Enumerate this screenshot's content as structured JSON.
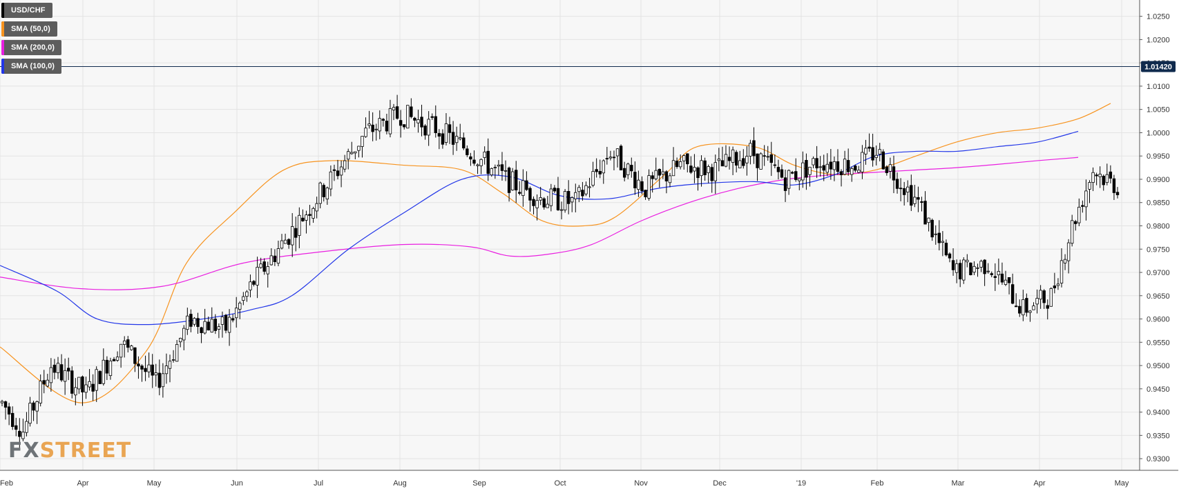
{
  "legend": {
    "items": [
      {
        "label": "USD/CHF",
        "color": "#000000"
      },
      {
        "label": "SMA (50,0)",
        "color": "#f7931e"
      },
      {
        "label": "SMA (200,0)",
        "color": "#e91ee0"
      },
      {
        "label": "SMA (100,0)",
        "color": "#2236e8"
      }
    ]
  },
  "watermark": {
    "part1": "FX",
    "part2": "STREET"
  },
  "price_marker": {
    "value": "1.01420",
    "color": "#0f2a4d"
  },
  "chart_data": {
    "type": "candlestick",
    "title": "",
    "xlabel": "",
    "ylabel": "",
    "ylim": [
      0.9275,
      1.0285
    ],
    "y_ticks": [
      "0.9300",
      "0.9350",
      "0.9400",
      "0.9450",
      "0.9500",
      "0.9550",
      "0.9600",
      "0.9650",
      "0.9700",
      "0.9750",
      "0.9800",
      "0.9850",
      "0.9900",
      "0.9950",
      "1.0000",
      "1.0050",
      "1.0100",
      "1.0150",
      "1.0200",
      "1.0250"
    ],
    "x_ticks": [
      "Feb",
      "Apr",
      "May",
      "Jun",
      "Jul",
      "Aug",
      "Sep",
      "Oct",
      "Nov",
      "Dec",
      "'19",
      "Feb",
      "Mar",
      "Apr",
      "May"
    ],
    "grid": true,
    "horizontal_line": 1.0142,
    "candle_count": 320,
    "price_path": [
      [
        0,
        0.942
      ],
      [
        6,
        0.936
      ],
      [
        14,
        0.95
      ],
      [
        24,
        0.944
      ],
      [
        34,
        0.955
      ],
      [
        44,
        0.946
      ],
      [
        54,
        0.96
      ],
      [
        64,
        0.958
      ],
      [
        72,
        0.968
      ],
      [
        84,
        0.98
      ],
      [
        94,
        0.99
      ],
      [
        104,
        1.0
      ],
      [
        114,
        1.004
      ],
      [
        124,
        1.001
      ],
      [
        134,
        0.996
      ],
      [
        144,
        0.99
      ],
      [
        154,
        0.986
      ],
      [
        164,
        0.985
      ],
      [
        174,
        0.996
      ],
      [
        184,
        0.988
      ],
      [
        194,
        0.993
      ],
      [
        204,
        0.992
      ],
      [
        214,
        0.996
      ],
      [
        224,
        0.99
      ],
      [
        234,
        0.994
      ],
      [
        244,
        0.993
      ],
      [
        250,
        0.996
      ],
      [
        262,
        0.985
      ],
      [
        272,
        0.97
      ],
      [
        282,
        0.972
      ],
      [
        292,
        0.962
      ],
      [
        300,
        0.965
      ],
      [
        306,
        0.98
      ],
      [
        312,
        0.992
      ],
      [
        320,
        0.988
      ]
    ],
    "series": [
      {
        "name": "SMA (50,0)",
        "values": [
          [
            0,
            0.954
          ],
          [
            20,
            0.942
          ],
          [
            36,
            0.953
          ],
          [
            46,
            0.972
          ],
          [
            58,
            0.983
          ],
          [
            70,
            0.992
          ],
          [
            82,
            0.994
          ],
          [
            100,
            0.993
          ],
          [
            114,
            0.992
          ],
          [
            124,
            0.987
          ],
          [
            134,
            0.981
          ],
          [
            144,
            0.98
          ],
          [
            152,
            0.982
          ],
          [
            164,
            0.991
          ],
          [
            172,
            0.997
          ],
          [
            186,
            0.997
          ],
          [
            196,
            0.993
          ],
          [
            206,
            0.991
          ],
          [
            216,
            0.992
          ],
          [
            226,
            0.995
          ],
          [
            236,
            0.998
          ],
          [
            246,
            1.0
          ],
          [
            256,
            1.001
          ],
          [
            266,
            1.003
          ],
          [
            274,
            1.0063
          ]
        ]
      },
      {
        "name": "SMA (200,0)",
        "values": [
          [
            0,
            0.969
          ],
          [
            20,
            0.9665
          ],
          [
            40,
            0.967
          ],
          [
            60,
            0.972
          ],
          [
            80,
            0.9745
          ],
          [
            100,
            0.976
          ],
          [
            116,
            0.9755
          ],
          [
            126,
            0.9735
          ],
          [
            136,
            0.974
          ],
          [
            146,
            0.976
          ],
          [
            158,
            0.981
          ],
          [
            170,
            0.985
          ],
          [
            182,
            0.988
          ],
          [
            194,
            0.99
          ],
          [
            206,
            0.991
          ],
          [
            216,
            0.9915
          ],
          [
            226,
            0.992
          ],
          [
            236,
            0.9925
          ],
          [
            246,
            0.9932
          ],
          [
            256,
            0.994
          ],
          [
            266,
            0.9947
          ]
        ]
      },
      {
        "name": "SMA (100,0)",
        "values": [
          [
            0,
            0.9715
          ],
          [
            14,
            0.966
          ],
          [
            24,
            0.96
          ],
          [
            36,
            0.9588
          ],
          [
            50,
            0.96
          ],
          [
            62,
            0.962
          ],
          [
            72,
            0.965
          ],
          [
            86,
            0.975
          ],
          [
            100,
            0.983
          ],
          [
            114,
            0.99
          ],
          [
            126,
            0.9905
          ],
          [
            138,
            0.9865
          ],
          [
            150,
            0.9858
          ],
          [
            162,
            0.988
          ],
          [
            172,
            0.989
          ],
          [
            186,
            0.9895
          ],
          [
            196,
            0.9888
          ],
          [
            206,
            0.991
          ],
          [
            216,
            0.995
          ],
          [
            226,
            0.996
          ],
          [
            236,
            0.996
          ],
          [
            246,
            0.997
          ],
          [
            256,
            0.998
          ],
          [
            266,
            1.0003
          ]
        ]
      }
    ]
  }
}
